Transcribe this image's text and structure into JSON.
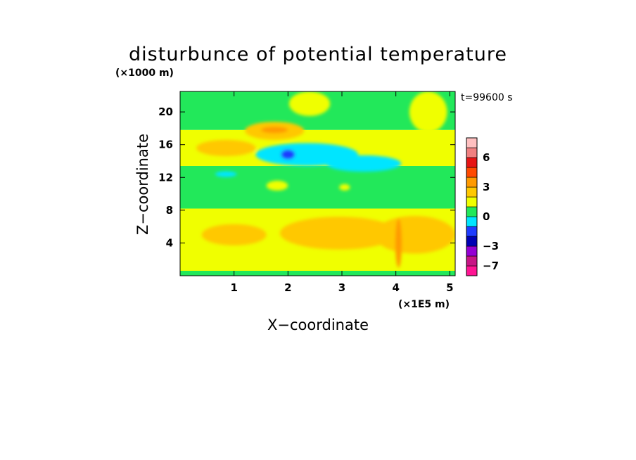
{
  "chart_data": {
    "type": "heatmap",
    "title": "disturbunce of potential temperature",
    "time_label": "t=99600 s",
    "xlabel": "X−coordinate",
    "ylabel": "Z−coordinate",
    "x_unit": "(×1E5 m)",
    "y_unit": "(×1000 m)",
    "xlim": [
      0,
      5.1
    ],
    "ylim": [
      0,
      22.5
    ],
    "x_ticks": [
      "1",
      "2",
      "3",
      "4",
      "5"
    ],
    "y_ticks": [
      "4",
      "8",
      "12",
      "16",
      "20"
    ],
    "colorbar": {
      "levels": [
        {
          "color": "#ff1493"
        },
        {
          "color": "#c71585"
        },
        {
          "color": "#9400d3"
        },
        {
          "color": "#0000b4"
        },
        {
          "color": "#1e3cff"
        },
        {
          "color": "#00e5ff"
        },
        {
          "color": "#22e85a"
        },
        {
          "color": "#f0ff00"
        },
        {
          "color": "#ffc800"
        },
        {
          "color": "#ff9a00"
        },
        {
          "color": "#ff4a00"
        },
        {
          "color": "#e61414"
        },
        {
          "color": "#f08080"
        },
        {
          "color": "#ffc0c0"
        }
      ],
      "tick_labels": [
        "6",
        "3",
        "0",
        "−3",
        "−7"
      ]
    },
    "bands": [
      {
        "z0": 0.0,
        "z1": 0.6,
        "color": "#22e85a"
      },
      {
        "z0": 0.6,
        "z1": 8.2,
        "color": "#f0ff00"
      },
      {
        "z0": 8.2,
        "z1": 13.4,
        "color": "#22e85a"
      },
      {
        "z0": 13.4,
        "z1": 17.8,
        "color": "#f0ff00"
      },
      {
        "z0": 17.8,
        "z1": 22.5,
        "color": "#22e85a"
      }
    ],
    "features": [
      {
        "x": 2.95,
        "z": 5.2,
        "rx": 1.1,
        "rz": 2.0,
        "color": "#ffc800"
      },
      {
        "x": 4.35,
        "z": 5.0,
        "rx": 0.75,
        "rz": 2.3,
        "color": "#ffc800"
      },
      {
        "x": 1.0,
        "z": 5.0,
        "rx": 0.6,
        "rz": 1.3,
        "color": "#ffc800"
      },
      {
        "x": 4.05,
        "z": 4.0,
        "rx": 0.06,
        "rz": 3.0,
        "color": "#ff9a00"
      },
      {
        "x": 2.35,
        "z": 14.8,
        "rx": 0.95,
        "rz": 1.4,
        "color": "#00e5ff"
      },
      {
        "x": 3.4,
        "z": 13.7,
        "rx": 0.7,
        "rz": 1.0,
        "color": "#00e5ff"
      },
      {
        "x": 0.85,
        "z": 12.4,
        "rx": 0.2,
        "rz": 0.35,
        "color": "#00e5ff"
      },
      {
        "x": 2.0,
        "z": 14.8,
        "rx": 0.13,
        "rz": 0.6,
        "color": "#1e3cff"
      },
      {
        "x": 0.85,
        "z": 15.6,
        "rx": 0.55,
        "rz": 1.0,
        "color": "#ffc800"
      },
      {
        "x": 1.75,
        "z": 17.7,
        "rx": 0.55,
        "rz": 1.1,
        "color": "#ffc800"
      },
      {
        "x": 1.75,
        "z": 17.8,
        "rx": 0.25,
        "rz": 0.4,
        "color": "#ff9a00"
      },
      {
        "x": 1.8,
        "z": 11.0,
        "rx": 0.2,
        "rz": 0.6,
        "color": "#f0ff00"
      },
      {
        "x": 3.05,
        "z": 10.8,
        "rx": 0.1,
        "rz": 0.4,
        "color": "#f0ff00"
      },
      {
        "x": 2.4,
        "z": 21.0,
        "rx": 0.38,
        "rz": 1.5,
        "color": "#f0ff00"
      },
      {
        "x": 4.6,
        "z": 20.0,
        "rx": 0.35,
        "rz": 2.5,
        "color": "#f0ff00"
      }
    ]
  }
}
